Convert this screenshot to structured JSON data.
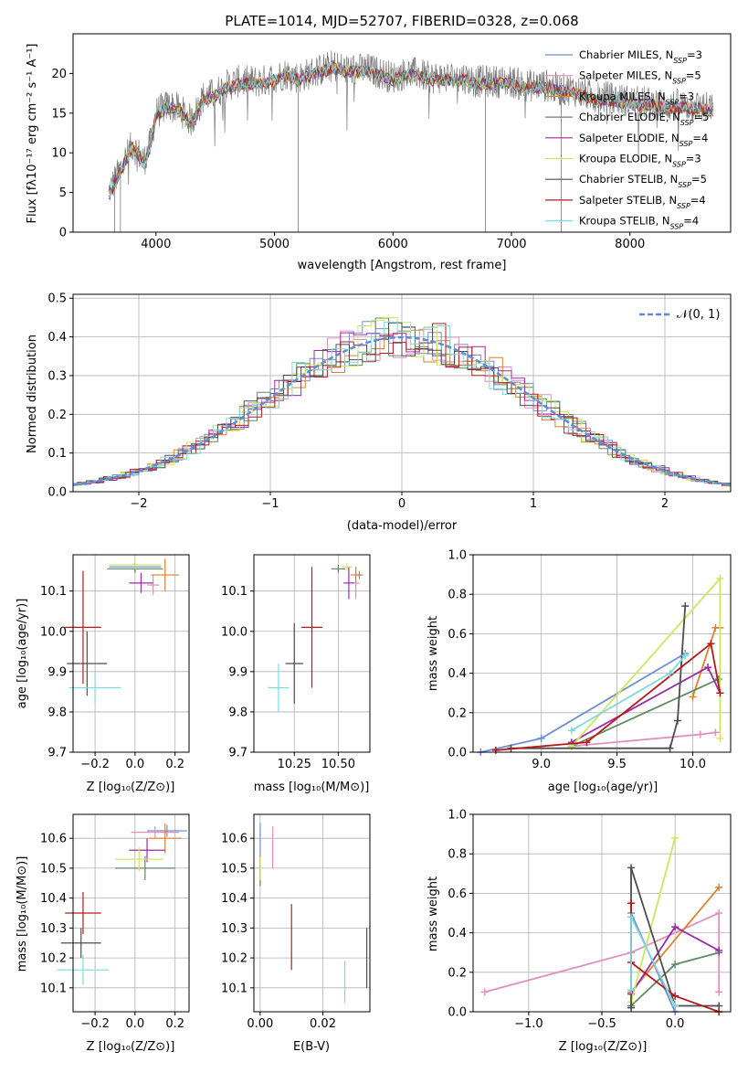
{
  "colors": {
    "c1": "#6d8fd1",
    "c2": "#e08fbd",
    "c3": "#d9822f",
    "c4": "#5e8a64",
    "c5": "#9b2aa8",
    "c6": "#cfe560",
    "c7": "#4d4d4d",
    "c8": "#b31b1b",
    "c9": "#7fd8de"
  },
  "chart_data": [
    {
      "id": "spectrum",
      "type": "line",
      "title": "PLATE=1014, MJD=52707, FIBERID=0328, z=0.068",
      "xlabel": "wavelength [Angstrom, rest frame]",
      "ylabel": "Flux [fλ10⁻¹⁷ erg cm⁻² s⁻¹ A⁻¹]",
      "xlim": [
        3300,
        8850
      ],
      "ylim": [
        0,
        25
      ],
      "xticks": [
        "4000",
        "5000",
        "6000",
        "7000",
        "8000"
      ],
      "yticks": [
        "0",
        "5",
        "10",
        "15",
        "20"
      ],
      "legend_position": "top-right",
      "legend": [
        "Chabrier MILES, N_SSP=3",
        "Salpeter MILES, N_SSP=5",
        "Kroupa MILES, N_SSP=3",
        "Chabrier ELODIE, N_SSP=5",
        "Salpeter ELODIE, N_SSP=4",
        "Kroupa ELODIE, N_SSP=3",
        "Chabrier STELIB, N_SSP=5",
        "Salpeter STELIB, N_SSP=4",
        "Kroupa STELIB, N_SSP=4"
      ],
      "data_envelope": {
        "x": [
          3600,
          3700,
          3800,
          3900,
          3950,
          4000,
          4100,
          4200,
          4300,
          4400,
          4500,
          4600,
          4700,
          4800,
          4900,
          5000,
          5100,
          5200,
          5300,
          5400,
          5500,
          5600,
          5700,
          5800,
          5900,
          6000,
          6100,
          6200,
          6300,
          6400,
          6500,
          6600,
          6700,
          6800,
          6900,
          7000,
          7100,
          7200,
          7300,
          7400,
          7500,
          7600,
          7700,
          7800,
          7900,
          8000,
          8100,
          8200,
          8300,
          8400,
          8500,
          8600,
          8700
        ],
        "y": [
          5,
          8,
          11,
          9,
          11,
          15,
          16,
          15.5,
          14,
          17,
          17.5,
          18.5,
          19,
          19,
          19,
          19.5,
          20,
          19.5,
          20,
          20.5,
          21,
          20.5,
          20.5,
          20.5,
          20,
          19.5,
          20,
          20,
          19.5,
          19.5,
          19.5,
          19.5,
          19,
          19,
          19,
          19,
          18.5,
          18.5,
          18.5,
          18,
          18,
          17.5,
          17,
          17,
          16.8,
          16.5,
          16.3,
          16.3,
          16,
          16,
          16,
          15.8,
          15.5
        ]
      }
    },
    {
      "id": "residuals",
      "type": "line",
      "xlabel": "(data-model)/error",
      "ylabel": "Normed distribution",
      "xlim": [
        -2.5,
        2.5
      ],
      "ylim": [
        0,
        0.51
      ],
      "xticks": [
        "−2",
        "−1",
        "0",
        "1",
        "2"
      ],
      "yticks": [
        "0.0",
        "0.1",
        "0.2",
        "0.3",
        "0.4",
        "0.5"
      ],
      "legend": [
        "𝒩(0, 1)"
      ],
      "legend_position": "top-right",
      "grid": true,
      "series": [
        {
          "name": "𝒩(0, 1)",
          "mean": 0,
          "sigma": 1
        }
      ]
    },
    {
      "id": "age-vs-Z",
      "type": "scatter",
      "xlabel": "Z [log₁₀(Z/Z⊙)]",
      "ylabel": "age  [log₁₀(age/yr)]",
      "xlim": [
        -0.31,
        0.27
      ],
      "ylim": [
        9.7,
        10.19
      ],
      "xticks": [
        "−0.2",
        "0.0",
        "0.2"
      ],
      "yticks": [
        "9.7",
        "9.8",
        "9.9",
        "10.0",
        "10.1"
      ],
      "grid": true,
      "points": [
        {
          "x": 0.0,
          "y": 10.16,
          "xerr": 0.13,
          "yerr": 0.01
        },
        {
          "x": 0.09,
          "y": 10.115,
          "xerr": 0.03,
          "yerr": 0.025
        },
        {
          "x": 0.15,
          "y": 10.14,
          "xerr": 0.07,
          "yerr": 0.04
        },
        {
          "x": 0.0,
          "y": 10.155,
          "xerr": 0.14,
          "yerr": 0.01
        },
        {
          "x": 0.03,
          "y": 10.12,
          "xerr": 0.06,
          "yerr": 0.025
        },
        {
          "x": 0.0,
          "y": 10.165,
          "xerr": 0.13,
          "yerr": 0.01
        },
        {
          "x": -0.24,
          "y": 9.92,
          "xerr": 0.1,
          "yerr": 0.08
        },
        {
          "x": -0.26,
          "y": 10.01,
          "xerr": 0.09,
          "yerr": 0.14
        },
        {
          "x": -0.2,
          "y": 9.86,
          "xerr": 0.13,
          "yerr": 0.04
        }
      ]
    },
    {
      "id": "age-vs-mass",
      "type": "scatter",
      "xlabel": "mass [log₁₀(M/M⊙)]",
      "ylabel": "",
      "xlim": [
        10.02,
        10.68
      ],
      "ylim": [
        9.7,
        10.19
      ],
      "xticks": [
        "10.25",
        "10.50"
      ],
      "yticks": [
        "9.7",
        "9.8",
        "9.9",
        "10.0",
        "10.1"
      ],
      "grid": true,
      "points": [
        {
          "x": 10.62,
          "y": 10.14,
          "xerr": 0.02,
          "yerr": 0.01
        },
        {
          "x": 10.6,
          "y": 10.12,
          "xerr": 0.02,
          "yerr": 0.04
        },
        {
          "x": 10.6,
          "y": 10.14,
          "xerr": 0.03,
          "yerr": 0.02
        },
        {
          "x": 10.5,
          "y": 10.155,
          "xerr": 0.04,
          "yerr": 0.01
        },
        {
          "x": 10.56,
          "y": 10.12,
          "xerr": 0.03,
          "yerr": 0.04
        },
        {
          "x": 10.55,
          "y": 10.16,
          "xerr": 0.03,
          "yerr": 0.01
        },
        {
          "x": 10.25,
          "y": 9.92,
          "xerr": 0.05,
          "yerr": 0.1
        },
        {
          "x": 10.35,
          "y": 10.01,
          "xerr": 0.06,
          "yerr": 0.15
        },
        {
          "x": 10.16,
          "y": 9.86,
          "xerr": 0.06,
          "yerr": 0.06
        }
      ]
    },
    {
      "id": "weight-vs-age",
      "type": "line",
      "xlabel": "age  [log₁₀(age/yr)]",
      "ylabel": "mass weight",
      "xlim": [
        8.55,
        10.25
      ],
      "ylim": [
        0,
        1
      ],
      "xticks": [
        "9.0",
        "9.5",
        "10.0"
      ],
      "yticks": [
        "0.0",
        "0.2",
        "0.4",
        "0.6",
        "0.8",
        "1.0"
      ],
      "grid": true,
      "series": [
        {
          "x": [
            8.6,
            9.0,
            9.95
          ],
          "y": [
            0.0,
            0.07,
            0.5
          ]
        },
        {
          "x": [
            9.2,
            10.05,
            10.15
          ],
          "y": [
            0.03,
            0.09,
            0.1
          ]
        },
        {
          "x": [
            10.0,
            10.15,
            10.18
          ],
          "y": [
            0.28,
            0.63,
            0.63
          ]
        },
        {
          "x": [
            9.2,
            10.17,
            10.18
          ],
          "y": [
            0.03,
            0.37,
            0.3
          ]
        },
        {
          "x": [
            9.2,
            10.1,
            10.18
          ],
          "y": [
            0.05,
            0.43,
            0.3
          ]
        },
        {
          "x": [
            9.2,
            10.18,
            10.18
          ],
          "y": [
            0.03,
            0.88,
            0.07
          ]
        },
        {
          "x": [
            8.8,
            9.85,
            9.9,
            9.95
          ],
          "y": [
            0.02,
            0.02,
            0.16,
            0.74
          ]
        },
        {
          "x": [
            8.7,
            9.3,
            10.12,
            10.18
          ],
          "y": [
            0.01,
            0.05,
            0.55,
            0.3
          ]
        },
        {
          "x": [
            9.2,
            9.85,
            9.95
          ],
          "y": [
            0.11,
            0.4,
            0.49
          ]
        }
      ]
    },
    {
      "id": "mass-vs-Z",
      "type": "scatter",
      "xlabel": "Z [log₁₀(Z/Z⊙)]",
      "ylabel": "mass [log₁₀(M/M⊙)]",
      "xlim": [
        -0.31,
        0.27
      ],
      "ylim": [
        10.02,
        10.68
      ],
      "xticks": [
        "−0.2",
        "0.0",
        "0.2"
      ],
      "yticks": [
        "10.1",
        "10.2",
        "10.3",
        "10.4",
        "10.5",
        "10.6"
      ],
      "grid": true,
      "points": [
        {
          "x": 0.16,
          "y": 10.625,
          "xerr": 0.1,
          "yerr": 0.02
        },
        {
          "x": 0.1,
          "y": 10.62,
          "xerr": 0.12,
          "yerr": 0.02
        },
        {
          "x": 0.15,
          "y": 10.6,
          "xerr": 0.08,
          "yerr": 0.05
        },
        {
          "x": 0.05,
          "y": 10.5,
          "xerr": 0.15,
          "yerr": 0.04
        },
        {
          "x": 0.06,
          "y": 10.56,
          "xerr": 0.09,
          "yerr": 0.04
        },
        {
          "x": 0.02,
          "y": 10.53,
          "xerr": 0.12,
          "yerr": 0.04
        },
        {
          "x": -0.27,
          "y": 10.25,
          "xerr": 0.1,
          "yerr": 0.05
        },
        {
          "x": -0.26,
          "y": 10.35,
          "xerr": 0.09,
          "yerr": 0.07
        },
        {
          "x": -0.26,
          "y": 10.16,
          "xerr": 0.13,
          "yerr": 0.05
        }
      ]
    },
    {
      "id": "mass-vs-EBV",
      "type": "scatter",
      "xlabel": "E(B-V)",
      "ylabel": "",
      "xlim": [
        -0.002,
        0.035
      ],
      "ylim": [
        10.02,
        10.68
      ],
      "xticks": [
        "0.00",
        "0.02"
      ],
      "yticks": [
        "10.1",
        "10.2",
        "10.3",
        "10.4",
        "10.5",
        "10.6"
      ],
      "grid": true,
      "points": [
        {
          "x": 0.0,
          "y": 10.6,
          "xerr": 0,
          "yerr": 0.05
        },
        {
          "x": 0.004,
          "y": 10.57,
          "xerr": 0,
          "yerr": 0.07
        },
        {
          "x": 0.0,
          "y": 10.5,
          "xerr": 0,
          "yerr": 0.05
        },
        {
          "x": 0.0,
          "y": 10.48,
          "xerr": 0,
          "yerr": 0.04
        },
        {
          "x": 0.0,
          "y": 10.5,
          "xerr": 0,
          "yerr": 0.04
        },
        {
          "x": 0.0,
          "y": 10.5,
          "xerr": 0,
          "yerr": 0.04
        },
        {
          "x": 0.034,
          "y": 10.2,
          "xerr": 0,
          "yerr": 0.1
        },
        {
          "x": 0.01,
          "y": 10.27,
          "xerr": 0,
          "yerr": 0.11
        },
        {
          "x": 0.027,
          "y": 10.12,
          "xerr": 0,
          "yerr": 0.07
        }
      ]
    },
    {
      "id": "weight-vs-Z",
      "type": "line",
      "xlabel": "Z [log₁₀(Z/Z⊙)]",
      "ylabel": "mass weight",
      "xlim": [
        -1.38,
        0.38
      ],
      "ylim": [
        0,
        1
      ],
      "xticks": [
        "−1.0",
        "−0.5",
        "0.0"
      ],
      "yticks": [
        "0.0",
        "0.2",
        "0.4",
        "0.6",
        "0.8",
        "1.0"
      ],
      "grid": true,
      "series": [
        {
          "x": [
            -0.3,
            -0.3,
            0.0
          ],
          "y": [
            0.09,
            0.5,
            0.0
          ]
        },
        {
          "x": [
            -1.3,
            -0.3,
            0.3,
            0.3
          ],
          "y": [
            0.1,
            0.3,
            0.5,
            0.1
          ]
        },
        {
          "x": [
            -0.3,
            -0.3,
            0.3
          ],
          "y": [
            0.09,
            0.1,
            0.63
          ]
        },
        {
          "x": [
            -0.3,
            0.0,
            0.3
          ],
          "y": [
            0.03,
            0.24,
            0.3
          ]
        },
        {
          "x": [
            -0.3,
            0.0,
            0.3
          ],
          "y": [
            0.09,
            0.43,
            0.31
          ]
        },
        {
          "x": [
            -0.3,
            0.0
          ],
          "y": [
            0.05,
            0.88
          ]
        },
        {
          "x": [
            -0.3,
            -0.3,
            0.0,
            0.3
          ],
          "y": [
            0.02,
            0.73,
            0.03,
            0.03
          ]
        },
        {
          "x": [
            -0.3,
            -0.3,
            0.0,
            0.3
          ],
          "y": [
            0.55,
            0.25,
            0.08,
            0.0
          ]
        },
        {
          "x": [
            -0.3,
            -0.3,
            0.0
          ],
          "y": [
            0.11,
            0.48,
            0.03
          ]
        }
      ]
    }
  ]
}
